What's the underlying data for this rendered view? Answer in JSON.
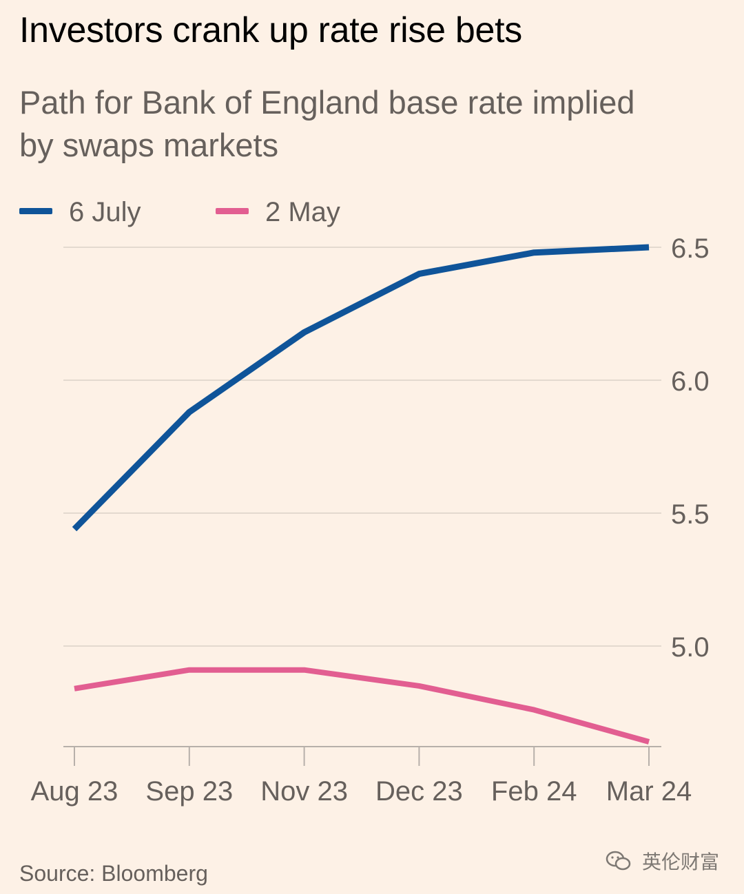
{
  "title": "Investors crank up rate rise bets",
  "subtitle": "Path for Bank of England base rate implied by swaps markets",
  "source": "Source: Bloomberg",
  "watermark": "英伦财富",
  "colors": {
    "background": "#fdf1e6",
    "series_6_july": "#0f5499",
    "series_2_may": "#e25e91",
    "gridline": "#e3d9cf",
    "axis": "#b7b0aa",
    "text_muted": "#66605c"
  },
  "legend": [
    {
      "label": "6 July",
      "color": "#0f5499"
    },
    {
      "label": "2 May",
      "color": "#e25e91"
    }
  ],
  "chart_data": {
    "type": "line",
    "title": "Investors crank up rate rise bets",
    "subtitle": "Path for Bank of England base rate implied by swaps markets",
    "xlabel": "",
    "ylabel": "",
    "categories": [
      "Aug 23",
      "Sep 23",
      "Nov 23",
      "Dec 23",
      "Feb 24",
      "Mar 24"
    ],
    "y_ticks": [
      "6.5",
      "6.0",
      "5.5",
      "5.0"
    ],
    "ylim": [
      4.62,
      6.5
    ],
    "grid": true,
    "y_axis_side": "right",
    "legend_position": "top-left",
    "series": [
      {
        "name": "6 July",
        "color": "#0f5499",
        "values": [
          5.44,
          5.88,
          6.18,
          6.4,
          6.48,
          6.5
        ]
      },
      {
        "name": "2 May",
        "color": "#e25e91",
        "values": [
          4.84,
          4.91,
          4.91,
          4.85,
          4.76,
          4.64
        ]
      }
    ]
  }
}
